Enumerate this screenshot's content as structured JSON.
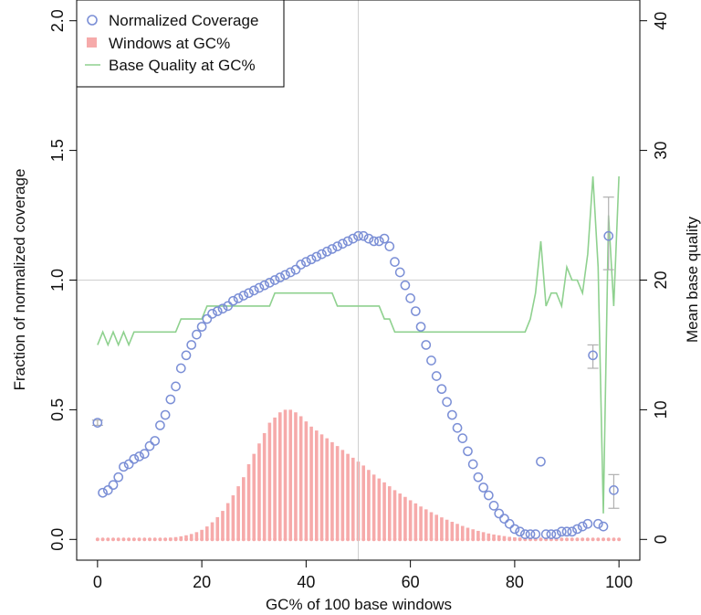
{
  "chart_data": {
    "type": "scatter",
    "xlabel": "GC% of 100 base windows",
    "ylabel_left": "Fraction of normalized coverage",
    "ylabel_right": "Mean base quality",
    "x_ticks": [
      "0",
      "20",
      "40",
      "60",
      "80",
      "100"
    ],
    "y_left_ticks": [
      "0.0",
      "0.5",
      "1.0",
      "1.5",
      "2.0"
    ],
    "y_right_ticks": [
      "0",
      "10",
      "20",
      "30",
      "40"
    ],
    "xlim": [
      -4,
      104
    ],
    "ylim_left": [
      -0.08,
      2.08
    ],
    "ylim_right": [
      -1.6,
      41.6
    ],
    "reference_lines": {
      "x": 50,
      "y": 1.0
    },
    "legend": {
      "position": "top-left",
      "entries": [
        "Normalized Coverage",
        "Windows at GC%",
        "Base Quality at GC%"
      ]
    },
    "colors": {
      "coverage": "#7b8fd6",
      "windows": "#f6aaaa",
      "quality": "#8fd18f",
      "error_bars": "#b0b0b0",
      "reference": "#cfcfcf"
    },
    "series": [
      {
        "name": "Normalized Coverage",
        "axis": "left",
        "x": [
          0,
          1,
          2,
          3,
          4,
          5,
          6,
          7,
          8,
          9,
          10,
          11,
          12,
          13,
          14,
          15,
          16,
          17,
          18,
          19,
          20,
          21,
          22,
          23,
          24,
          25,
          26,
          27,
          28,
          29,
          30,
          31,
          32,
          33,
          34,
          35,
          36,
          37,
          38,
          39,
          40,
          41,
          42,
          43,
          44,
          45,
          46,
          47,
          48,
          49,
          50,
          51,
          52,
          53,
          54,
          55,
          56,
          57,
          58,
          59,
          60,
          61,
          62,
          63,
          64,
          65,
          66,
          67,
          68,
          69,
          70,
          71,
          72,
          73,
          74,
          75,
          76,
          77,
          78,
          79,
          80,
          81,
          82,
          83,
          84,
          85,
          86,
          87,
          88,
          89,
          90,
          91,
          92,
          93,
          94,
          95,
          96,
          97,
          98,
          99
        ],
        "values": [
          0.45,
          0.18,
          0.19,
          0.21,
          0.24,
          0.28,
          0.29,
          0.31,
          0.32,
          0.33,
          0.36,
          0.38,
          0.44,
          0.48,
          0.54,
          0.59,
          0.66,
          0.71,
          0.75,
          0.79,
          0.82,
          0.85,
          0.87,
          0.88,
          0.89,
          0.9,
          0.92,
          0.93,
          0.94,
          0.95,
          0.96,
          0.97,
          0.98,
          0.99,
          1.0,
          1.01,
          1.02,
          1.03,
          1.04,
          1.06,
          1.07,
          1.08,
          1.09,
          1.1,
          1.11,
          1.12,
          1.13,
          1.14,
          1.15,
          1.16,
          1.17,
          1.17,
          1.16,
          1.15,
          1.15,
          1.16,
          1.13,
          1.07,
          1.03,
          0.98,
          0.93,
          0.88,
          0.82,
          0.75,
          0.69,
          0.63,
          0.58,
          0.53,
          0.48,
          0.43,
          0.39,
          0.34,
          0.29,
          0.24,
          0.2,
          0.17,
          0.13,
          0.1,
          0.08,
          0.06,
          0.04,
          0.03,
          0.02,
          0.02,
          0.02,
          0.3,
          0.02,
          0.02,
          0.02,
          0.03,
          0.03,
          0.03,
          0.04,
          0.05,
          0.06,
          0.71,
          0.06,
          0.05,
          1.17,
          0.19
        ]
      },
      {
        "name": "Windows at GC%",
        "axis": "left",
        "x": [
          0,
          1,
          2,
          3,
          4,
          5,
          6,
          7,
          8,
          9,
          10,
          11,
          12,
          13,
          14,
          15,
          16,
          17,
          18,
          19,
          20,
          21,
          22,
          23,
          24,
          25,
          26,
          27,
          28,
          29,
          30,
          31,
          32,
          33,
          34,
          35,
          36,
          37,
          38,
          39,
          40,
          41,
          42,
          43,
          44,
          45,
          46,
          47,
          48,
          49,
          50,
          51,
          52,
          53,
          54,
          55,
          56,
          57,
          58,
          59,
          60,
          61,
          62,
          63,
          64,
          65,
          66,
          67,
          68,
          69,
          70,
          71,
          72,
          73,
          74,
          75,
          76,
          77,
          78,
          79,
          80,
          81,
          82,
          83,
          84,
          85,
          86,
          87,
          88,
          89,
          90,
          91,
          92,
          93,
          94,
          95,
          96,
          97,
          98,
          99,
          100
        ],
        "values": [
          0.001,
          0.001,
          0.001,
          0.001,
          0.001,
          0.001,
          0.001,
          0.002,
          0.002,
          0.002,
          0.003,
          0.003,
          0.004,
          0.005,
          0.007,
          0.009,
          0.012,
          0.016,
          0.021,
          0.028,
          0.037,
          0.05,
          0.066,
          0.086,
          0.11,
          0.14,
          0.17,
          0.205,
          0.24,
          0.29,
          0.33,
          0.37,
          0.41,
          0.45,
          0.47,
          0.49,
          0.5,
          0.5,
          0.49,
          0.475,
          0.455,
          0.435,
          0.42,
          0.405,
          0.39,
          0.375,
          0.36,
          0.345,
          0.33,
          0.315,
          0.3,
          0.285,
          0.268,
          0.25,
          0.235,
          0.22,
          0.205,
          0.19,
          0.177,
          0.164,
          0.151,
          0.139,
          0.127,
          0.116,
          0.105,
          0.095,
          0.085,
          0.076,
          0.068,
          0.06,
          0.052,
          0.045,
          0.039,
          0.033,
          0.028,
          0.023,
          0.019,
          0.016,
          0.013,
          0.01,
          0.008,
          0.007,
          0.006,
          0.005,
          0.004,
          0.003,
          0.003,
          0.002,
          0.002,
          0.002,
          0.001,
          0.001,
          0.001,
          0.001,
          0.001,
          0.001,
          0.001,
          0.001,
          0.001,
          0.001,
          0.001
        ]
      },
      {
        "name": "Base Quality at GC%",
        "axis": "right",
        "x": [
          0,
          1,
          2,
          3,
          4,
          5,
          6,
          7,
          8,
          9,
          10,
          11,
          12,
          13,
          14,
          15,
          16,
          17,
          18,
          19,
          20,
          21,
          22,
          23,
          24,
          25,
          26,
          27,
          28,
          29,
          30,
          31,
          32,
          33,
          34,
          35,
          36,
          37,
          38,
          39,
          40,
          41,
          42,
          43,
          44,
          45,
          46,
          47,
          48,
          49,
          50,
          51,
          52,
          53,
          54,
          55,
          56,
          57,
          58,
          59,
          60,
          61,
          62,
          63,
          64,
          65,
          66,
          67,
          68,
          69,
          70,
          71,
          72,
          73,
          74,
          75,
          76,
          77,
          78,
          79,
          80,
          81,
          82,
          83,
          84,
          85,
          86,
          87,
          88,
          89,
          90,
          91,
          92,
          93,
          94,
          95,
          96,
          97,
          98,
          99,
          100
        ],
        "values": [
          15,
          16,
          15,
          16,
          15,
          16,
          15,
          16,
          16,
          16,
          16,
          16,
          16,
          16,
          16,
          16,
          17,
          17,
          17,
          17,
          17,
          18,
          18,
          18,
          18,
          18,
          18,
          18,
          18,
          18,
          18,
          18,
          18,
          18,
          19,
          19,
          19,
          19,
          19,
          19,
          19,
          19,
          19,
          19,
          19,
          19,
          18,
          18,
          18,
          18,
          18,
          18,
          18,
          18,
          18,
          17,
          17,
          16,
          16,
          16,
          16,
          16,
          16,
          16,
          16,
          16,
          16,
          16,
          16,
          16,
          16,
          16,
          16,
          16,
          16,
          16,
          16,
          16,
          16,
          16,
          16,
          16,
          16,
          17,
          19,
          23,
          18,
          19,
          19,
          18,
          21,
          20,
          20,
          19,
          22,
          28,
          21,
          2,
          25,
          18,
          28
        ]
      }
    ],
    "error_bars": [
      {
        "x": 0,
        "low": 0.44,
        "high": 0.46
      },
      {
        "x": 95,
        "low": 0.66,
        "high": 0.75
      },
      {
        "x": 98,
        "low": 1.04,
        "high": 1.32
      },
      {
        "x": 99,
        "low": 0.12,
        "high": 0.25
      }
    ]
  }
}
